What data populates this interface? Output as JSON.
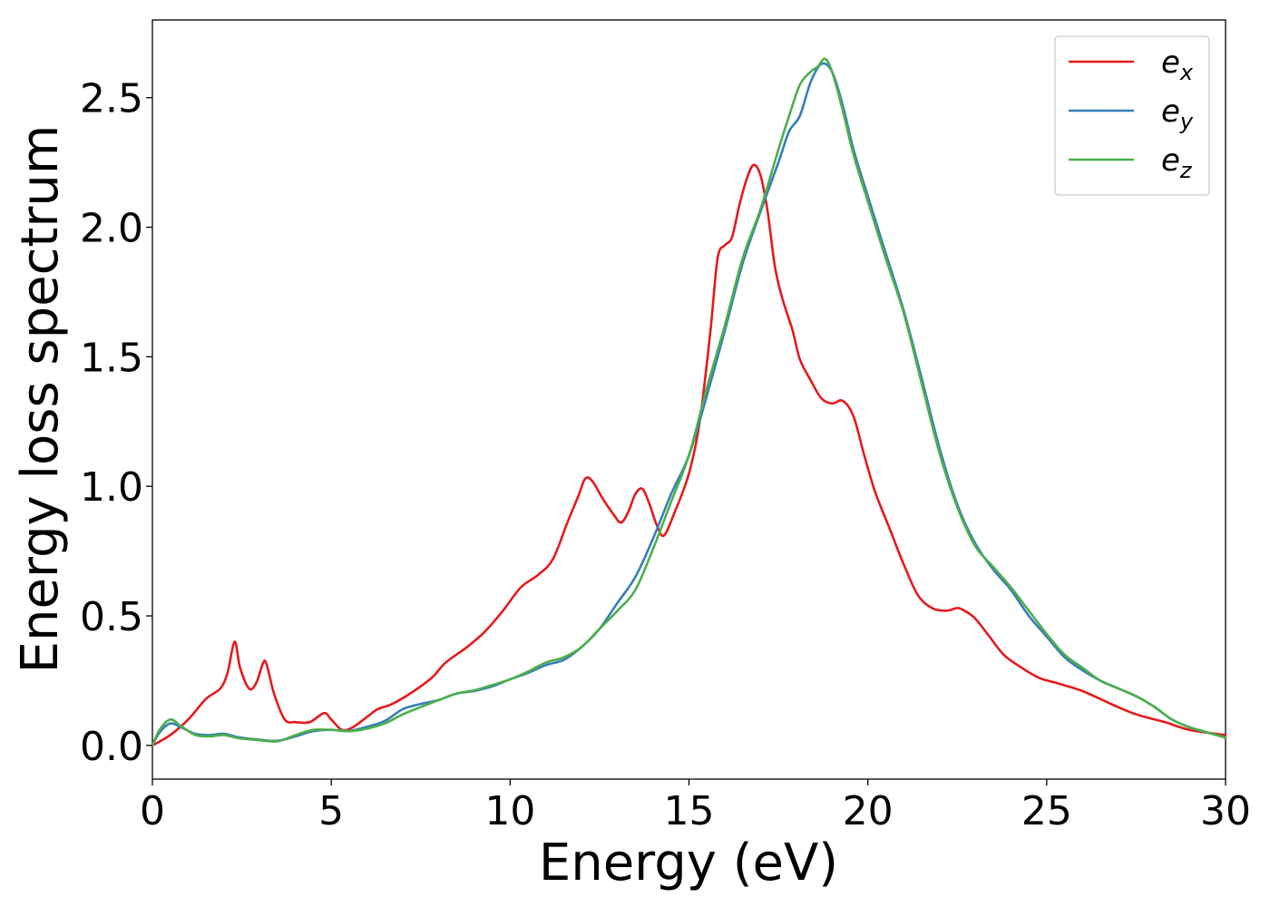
{
  "chart_data": {
    "type": "line",
    "title": "",
    "xlabel": "Energy (eV)",
    "ylabel": "Energy loss spectrum",
    "xlim": [
      0,
      30
    ],
    "ylim": [
      -0.13,
      2.8
    ],
    "xticks": [
      0,
      5,
      10,
      15,
      20,
      25,
      30
    ],
    "xtick_labels": [
      "0",
      "5",
      "10",
      "15",
      "20",
      "25",
      "30"
    ],
    "yticks": [
      0.0,
      0.5,
      1.0,
      1.5,
      2.0,
      2.5
    ],
    "ytick_labels": [
      "0.0",
      "0.5",
      "1.0",
      "1.5",
      "2.0",
      "2.5"
    ],
    "grid": false,
    "legend_position": "top-right",
    "series": [
      {
        "name": "e_x",
        "label_base": "e",
        "label_sub": "x",
        "color": "#e41a1c",
        "points": [
          [
            0,
            0.0
          ],
          [
            0.5,
            0.04
          ],
          [
            1.0,
            0.1
          ],
          [
            1.5,
            0.18
          ],
          [
            1.9,
            0.22
          ],
          [
            2.1,
            0.28
          ],
          [
            2.3,
            0.4
          ],
          [
            2.45,
            0.3
          ],
          [
            2.7,
            0.22
          ],
          [
            2.9,
            0.24
          ],
          [
            3.1,
            0.32
          ],
          [
            3.2,
            0.31
          ],
          [
            3.4,
            0.2
          ],
          [
            3.7,
            0.1
          ],
          [
            4.0,
            0.09
          ],
          [
            4.4,
            0.09
          ],
          [
            4.8,
            0.125
          ],
          [
            5.0,
            0.1
          ],
          [
            5.3,
            0.06
          ],
          [
            5.6,
            0.07
          ],
          [
            6.0,
            0.11
          ],
          [
            6.3,
            0.14
          ],
          [
            6.7,
            0.16
          ],
          [
            7.2,
            0.2
          ],
          [
            7.8,
            0.26
          ],
          [
            8.2,
            0.32
          ],
          [
            8.8,
            0.38
          ],
          [
            9.3,
            0.44
          ],
          [
            9.8,
            0.52
          ],
          [
            10.3,
            0.61
          ],
          [
            10.8,
            0.66
          ],
          [
            11.2,
            0.72
          ],
          [
            11.6,
            0.86
          ],
          [
            11.9,
            0.96
          ],
          [
            12.1,
            1.03
          ],
          [
            12.3,
            1.02
          ],
          [
            12.6,
            0.95
          ],
          [
            12.9,
            0.89
          ],
          [
            13.1,
            0.86
          ],
          [
            13.3,
            0.9
          ],
          [
            13.5,
            0.97
          ],
          [
            13.7,
            0.99
          ],
          [
            13.9,
            0.93
          ],
          [
            14.1,
            0.85
          ],
          [
            14.3,
            0.81
          ],
          [
            14.6,
            0.9
          ],
          [
            15.0,
            1.05
          ],
          [
            15.3,
            1.25
          ],
          [
            15.6,
            1.6
          ],
          [
            15.8,
            1.88
          ],
          [
            16.0,
            1.93
          ],
          [
            16.2,
            1.96
          ],
          [
            16.4,
            2.08
          ],
          [
            16.6,
            2.18
          ],
          [
            16.8,
            2.24
          ],
          [
            17.0,
            2.2
          ],
          [
            17.2,
            2.06
          ],
          [
            17.4,
            1.85
          ],
          [
            17.6,
            1.73
          ],
          [
            17.9,
            1.6
          ],
          [
            18.1,
            1.49
          ],
          [
            18.4,
            1.41
          ],
          [
            18.7,
            1.34
          ],
          [
            19.0,
            1.32
          ],
          [
            19.3,
            1.33
          ],
          [
            19.6,
            1.27
          ],
          [
            19.9,
            1.12
          ],
          [
            20.2,
            0.98
          ],
          [
            20.6,
            0.84
          ],
          [
            21.0,
            0.7
          ],
          [
            21.4,
            0.58
          ],
          [
            21.8,
            0.53
          ],
          [
            22.2,
            0.52
          ],
          [
            22.5,
            0.53
          ],
          [
            22.7,
            0.52
          ],
          [
            23.0,
            0.49
          ],
          [
            23.4,
            0.42
          ],
          [
            23.8,
            0.35
          ],
          [
            24.3,
            0.3
          ],
          [
            24.8,
            0.26
          ],
          [
            25.3,
            0.24
          ],
          [
            26.0,
            0.21
          ],
          [
            26.8,
            0.16
          ],
          [
            27.5,
            0.12
          ],
          [
            28.3,
            0.09
          ],
          [
            29.0,
            0.06
          ],
          [
            30.0,
            0.04
          ]
        ]
      },
      {
        "name": "e_y",
        "label_base": "e",
        "label_sub": "y",
        "color": "#377eb8",
        "points": [
          [
            0,
            0.0
          ],
          [
            0.2,
            0.05
          ],
          [
            0.5,
            0.085
          ],
          [
            0.8,
            0.07
          ],
          [
            1.2,
            0.045
          ],
          [
            1.6,
            0.04
          ],
          [
            2.0,
            0.045
          ],
          [
            2.4,
            0.032
          ],
          [
            3.0,
            0.022
          ],
          [
            3.5,
            0.018
          ],
          [
            4.0,
            0.035
          ],
          [
            4.5,
            0.055
          ],
          [
            5.0,
            0.06
          ],
          [
            5.5,
            0.056
          ],
          [
            6.0,
            0.072
          ],
          [
            6.5,
            0.095
          ],
          [
            7.0,
            0.14
          ],
          [
            7.5,
            0.16
          ],
          [
            8.0,
            0.175
          ],
          [
            8.5,
            0.2
          ],
          [
            9.0,
            0.21
          ],
          [
            9.5,
            0.228
          ],
          [
            10.0,
            0.255
          ],
          [
            10.5,
            0.28
          ],
          [
            11.0,
            0.31
          ],
          [
            11.5,
            0.33
          ],
          [
            12.0,
            0.38
          ],
          [
            12.5,
            0.45
          ],
          [
            13.0,
            0.55
          ],
          [
            13.5,
            0.65
          ],
          [
            14.0,
            0.8
          ],
          [
            14.5,
            0.97
          ],
          [
            15.0,
            1.12
          ],
          [
            15.5,
            1.35
          ],
          [
            16.0,
            1.6
          ],
          [
            16.5,
            1.86
          ],
          [
            17.0,
            2.06
          ],
          [
            17.5,
            2.25
          ],
          [
            17.8,
            2.37
          ],
          [
            18.1,
            2.43
          ],
          [
            18.4,
            2.56
          ],
          [
            18.7,
            2.63
          ],
          [
            19.0,
            2.6
          ],
          [
            19.3,
            2.47
          ],
          [
            19.6,
            2.3
          ],
          [
            20.0,
            2.12
          ],
          [
            20.5,
            1.9
          ],
          [
            21.0,
            1.68
          ],
          [
            21.5,
            1.42
          ],
          [
            22.0,
            1.15
          ],
          [
            22.5,
            0.93
          ],
          [
            23.0,
            0.78
          ],
          [
            23.5,
            0.68
          ],
          [
            24.0,
            0.6
          ],
          [
            24.5,
            0.5
          ],
          [
            25.0,
            0.42
          ],
          [
            25.5,
            0.34
          ],
          [
            26.0,
            0.29
          ],
          [
            26.5,
            0.25
          ],
          [
            27.0,
            0.22
          ],
          [
            27.5,
            0.19
          ],
          [
            28.0,
            0.15
          ],
          [
            28.5,
            0.1
          ],
          [
            29.0,
            0.07
          ],
          [
            29.5,
            0.05
          ],
          [
            30.0,
            0.03
          ]
        ]
      },
      {
        "name": "e_z",
        "label_base": "e",
        "label_sub": "z",
        "color": "#4daf4a",
        "points": [
          [
            0,
            0.0
          ],
          [
            0.2,
            0.06
          ],
          [
            0.5,
            0.1
          ],
          [
            0.8,
            0.075
          ],
          [
            1.2,
            0.04
          ],
          [
            1.6,
            0.035
          ],
          [
            2.0,
            0.04
          ],
          [
            2.4,
            0.028
          ],
          [
            3.0,
            0.02
          ],
          [
            3.5,
            0.016
          ],
          [
            4.0,
            0.04
          ],
          [
            4.5,
            0.06
          ],
          [
            5.0,
            0.06
          ],
          [
            5.5,
            0.055
          ],
          [
            6.0,
            0.065
          ],
          [
            6.5,
            0.085
          ],
          [
            7.0,
            0.12
          ],
          [
            7.5,
            0.148
          ],
          [
            8.0,
            0.175
          ],
          [
            8.5,
            0.2
          ],
          [
            9.0,
            0.213
          ],
          [
            9.5,
            0.233
          ],
          [
            10.0,
            0.255
          ],
          [
            10.5,
            0.285
          ],
          [
            11.0,
            0.32
          ],
          [
            11.5,
            0.34
          ],
          [
            12.0,
            0.38
          ],
          [
            12.5,
            0.45
          ],
          [
            13.0,
            0.52
          ],
          [
            13.5,
            0.6
          ],
          [
            14.0,
            0.76
          ],
          [
            14.5,
            0.94
          ],
          [
            15.0,
            1.12
          ],
          [
            15.5,
            1.38
          ],
          [
            16.0,
            1.62
          ],
          [
            16.5,
            1.88
          ],
          [
            17.0,
            2.07
          ],
          [
            17.5,
            2.3
          ],
          [
            17.8,
            2.43
          ],
          [
            18.1,
            2.55
          ],
          [
            18.4,
            2.6
          ],
          [
            18.6,
            2.62
          ],
          [
            18.8,
            2.65
          ],
          [
            19.0,
            2.6
          ],
          [
            19.3,
            2.45
          ],
          [
            19.6,
            2.28
          ],
          [
            20.0,
            2.1
          ],
          [
            20.5,
            1.88
          ],
          [
            21.0,
            1.67
          ],
          [
            21.5,
            1.4
          ],
          [
            22.0,
            1.13
          ],
          [
            22.5,
            0.92
          ],
          [
            23.0,
            0.77
          ],
          [
            23.5,
            0.69
          ],
          [
            24.0,
            0.61
          ],
          [
            24.5,
            0.52
          ],
          [
            25.0,
            0.43
          ],
          [
            25.5,
            0.35
          ],
          [
            26.0,
            0.3
          ],
          [
            26.5,
            0.25
          ],
          [
            27.0,
            0.22
          ],
          [
            27.5,
            0.19
          ],
          [
            28.0,
            0.15
          ],
          [
            28.5,
            0.1
          ],
          [
            29.0,
            0.07
          ],
          [
            29.5,
            0.05
          ],
          [
            30.0,
            0.03
          ]
        ]
      }
    ]
  }
}
